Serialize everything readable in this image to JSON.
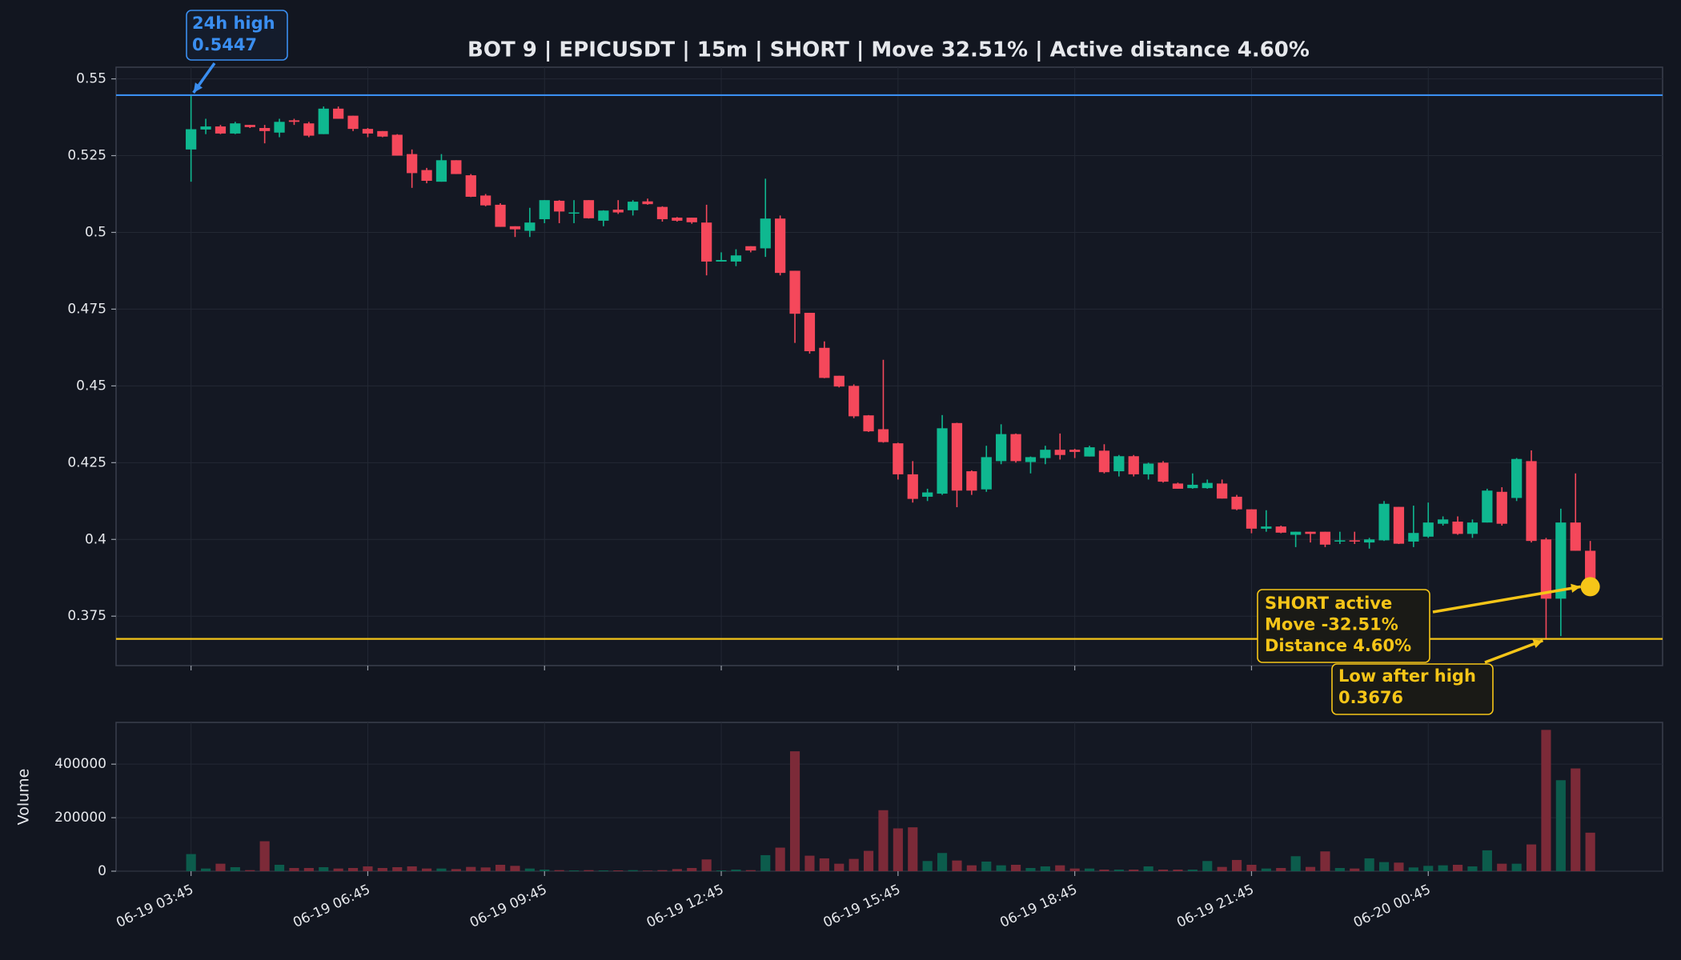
{
  "chart_data": [
    {
      "type": "candlestick",
      "title": "BOT 9 | EPICUSDT | 15m | SHORT | Move 32.51% | Active distance 4.60%",
      "categories": [
        "06-19 03:45",
        "06-19 04:00",
        "06-19 04:15",
        "06-19 04:30",
        "06-19 04:45",
        "06-19 05:00",
        "06-19 05:15",
        "06-19 05:30",
        "06-19 05:45",
        "06-19 06:00",
        "06-19 06:15",
        "06-19 06:30",
        "06-19 06:45",
        "06-19 07:00",
        "06-19 07:15",
        "06-19 07:30",
        "06-19 07:45",
        "06-19 08:00",
        "06-19 08:15",
        "06-19 08:30",
        "06-19 08:45",
        "06-19 09:00",
        "06-19 09:15",
        "06-19 09:30",
        "06-19 09:45",
        "06-19 10:00",
        "06-19 10:15",
        "06-19 10:30",
        "06-19 10:45",
        "06-19 11:00",
        "06-19 11:15",
        "06-19 11:30",
        "06-19 11:45",
        "06-19 12:00",
        "06-19 12:15",
        "06-19 12:30",
        "06-19 12:45",
        "06-19 13:00",
        "06-19 13:15",
        "06-19 13:30",
        "06-19 13:45",
        "06-19 14:00",
        "06-19 14:15",
        "06-19 14:30",
        "06-19 14:45",
        "06-19 15:00",
        "06-19 15:15",
        "06-19 15:30",
        "06-19 15:45",
        "06-19 16:00",
        "06-19 16:15",
        "06-19 16:30",
        "06-19 16:45",
        "06-19 17:00",
        "06-19 17:15",
        "06-19 17:30",
        "06-19 17:45",
        "06-19 18:00",
        "06-19 18:15",
        "06-19 18:30",
        "06-19 18:45",
        "06-19 19:00",
        "06-19 19:15",
        "06-19 19:30",
        "06-19 19:45",
        "06-19 20:00",
        "06-19 20:15",
        "06-19 20:30",
        "06-19 20:45",
        "06-19 21:00",
        "06-19 21:15",
        "06-19 21:30",
        "06-19 21:45",
        "06-19 22:00",
        "06-19 22:15",
        "06-19 22:30",
        "06-19 22:45",
        "06-19 23:00",
        "06-19 23:15",
        "06-19 23:30",
        "06-19 23:45",
        "06-20 00:00",
        "06-20 00:15",
        "06-20 00:30",
        "06-20 00:45",
        "06-20 01:00",
        "06-20 01:15",
        "06-20 01:30",
        "06-20 01:45",
        "06-20 02:00",
        "06-20 02:15",
        "06-20 02:30",
        "06-20 02:45",
        "06-20 03:00",
        "06-20 03:15",
        "06-20 03:30"
      ],
      "open": [
        0.527,
        0.5335,
        0.5345,
        0.5322,
        0.535,
        0.534,
        0.5325,
        0.5365,
        0.5355,
        0.532,
        0.5403,
        0.538,
        0.5337,
        0.533,
        0.5318,
        0.5255,
        0.5203,
        0.5165,
        0.5235,
        0.5186,
        0.512,
        0.509,
        0.502,
        0.5005,
        0.5043,
        0.5103,
        0.5063,
        0.5105,
        0.5038,
        0.5074,
        0.5072,
        0.5101,
        0.5083,
        0.5048,
        0.5048,
        0.5032,
        0.4905,
        0.4905,
        0.4955,
        0.4948,
        0.5045,
        0.4875,
        0.4738,
        0.4624,
        0.4533,
        0.45,
        0.4404,
        0.4359,
        0.4313,
        0.4212,
        0.4139,
        0.4149,
        0.4379,
        0.4222,
        0.4163,
        0.4255,
        0.4343,
        0.4252,
        0.4265,
        0.4292,
        0.4292,
        0.427,
        0.4289,
        0.4222,
        0.4271,
        0.4212,
        0.425,
        0.4182,
        0.4167,
        0.4167,
        0.4182,
        0.4139,
        0.4098,
        0.4035,
        0.4042,
        0.4015,
        0.4025,
        0.4025,
        0.3993,
        0.3997,
        0.399,
        0.3997,
        0.4106,
        0.3993,
        0.4009,
        0.4051,
        0.4058,
        0.4018,
        0.4055,
        0.4155,
        0.4135,
        0.4255,
        0.4,
        0.3807,
        0.4055,
        0.3963
      ],
      "high": [
        0.5447,
        0.537,
        0.535,
        0.536,
        0.535,
        0.535,
        0.537,
        0.537,
        0.536,
        0.541,
        0.541,
        0.538,
        0.534,
        0.533,
        0.532,
        0.527,
        0.521,
        0.5255,
        0.5235,
        0.519,
        0.5125,
        0.5095,
        0.502,
        0.508,
        0.5105,
        0.5105,
        0.5105,
        0.5105,
        0.5072,
        0.5105,
        0.5105,
        0.511,
        0.5085,
        0.505,
        0.5048,
        0.509,
        0.4935,
        0.4945,
        0.4955,
        0.5175,
        0.5055,
        0.4875,
        0.4738,
        0.4645,
        0.4533,
        0.4505,
        0.4405,
        0.4585,
        0.4315,
        0.4255,
        0.4165,
        0.4405,
        0.438,
        0.4225,
        0.4305,
        0.4375,
        0.4345,
        0.427,
        0.4305,
        0.4345,
        0.4295,
        0.4305,
        0.431,
        0.4275,
        0.4275,
        0.425,
        0.4255,
        0.4185,
        0.4215,
        0.4195,
        0.4195,
        0.4145,
        0.4098,
        0.4095,
        0.4045,
        0.4025,
        0.4025,
        0.4025,
        0.4025,
        0.4025,
        0.4005,
        0.4125,
        0.4106,
        0.411,
        0.412,
        0.4075,
        0.4075,
        0.4065,
        0.4165,
        0.417,
        0.4265,
        0.429,
        0.4005,
        0.41,
        0.4215,
        0.3995
      ],
      "low": [
        0.5165,
        0.532,
        0.532,
        0.532,
        0.534,
        0.529,
        0.531,
        0.535,
        0.531,
        0.532,
        0.537,
        0.533,
        0.531,
        0.531,
        0.525,
        0.5145,
        0.516,
        0.5165,
        0.519,
        0.5115,
        0.5085,
        0.5018,
        0.4985,
        0.4985,
        0.503,
        0.503,
        0.503,
        0.5045,
        0.502,
        0.506,
        0.5055,
        0.509,
        0.5035,
        0.5035,
        0.5028,
        0.486,
        0.4905,
        0.489,
        0.4935,
        0.492,
        0.486,
        0.464,
        0.4605,
        0.4525,
        0.4495,
        0.4395,
        0.435,
        0.4315,
        0.4195,
        0.412,
        0.4125,
        0.4145,
        0.4105,
        0.4145,
        0.4155,
        0.4245,
        0.425,
        0.4215,
        0.4245,
        0.426,
        0.4265,
        0.427,
        0.4215,
        0.4205,
        0.4205,
        0.4195,
        0.4185,
        0.4165,
        0.4165,
        0.4165,
        0.4133,
        0.4095,
        0.402,
        0.4025,
        0.402,
        0.3975,
        0.399,
        0.3975,
        0.3985,
        0.3985,
        0.397,
        0.3995,
        0.3985,
        0.3975,
        0.4005,
        0.4045,
        0.4015,
        0.4005,
        0.4055,
        0.4045,
        0.4125,
        0.399,
        0.3676,
        0.3685,
        0.3963,
        0.3846
      ],
      "close": [
        0.5336,
        0.5345,
        0.5322,
        0.5355,
        0.5343,
        0.533,
        0.536,
        0.536,
        0.5315,
        0.5403,
        0.537,
        0.5337,
        0.5322,
        0.5312,
        0.525,
        0.5193,
        0.5168,
        0.5235,
        0.519,
        0.5116,
        0.5088,
        0.5018,
        0.501,
        0.5032,
        0.5105,
        0.5068,
        0.5065,
        0.5046,
        0.5071,
        0.5065,
        0.51,
        0.5092,
        0.5043,
        0.5038,
        0.5033,
        0.4905,
        0.491,
        0.4925,
        0.4941,
        0.5045,
        0.4868,
        0.4735,
        0.4613,
        0.4526,
        0.4498,
        0.4401,
        0.4352,
        0.4317,
        0.4212,
        0.4132,
        0.4153,
        0.4362,
        0.4159,
        0.4159,
        0.4268,
        0.4343,
        0.4255,
        0.4268,
        0.4292,
        0.4275,
        0.4285,
        0.43,
        0.4219,
        0.4271,
        0.4212,
        0.4247,
        0.4188,
        0.4165,
        0.4178,
        0.4184,
        0.4133,
        0.4098,
        0.4035,
        0.4042,
        0.4022,
        0.4025,
        0.4018,
        0.3983,
        0.3997,
        0.3993,
        0.4,
        0.4116,
        0.3986,
        0.4021,
        0.4055,
        0.4065,
        0.4018,
        0.4055,
        0.4159,
        0.4051,
        0.4262,
        0.3995,
        0.3807,
        0.4055,
        0.3963,
        0.3846
      ],
      "up_color": "#0fb890",
      "down_color": "#f5485b",
      "ylim": [
        0.3589,
        0.5538
      ],
      "yticks": [
        0.375,
        0.4,
        0.425,
        0.45,
        0.475,
        0.5,
        0.525,
        0.55
      ],
      "xticks": [
        "06-19 03:45",
        "06-19 06:45",
        "06-19 09:45",
        "06-19 12:45",
        "06-19 15:45",
        "06-19 18:45",
        "06-19 21:45",
        "06-20 00:45"
      ],
      "grid": true,
      "annotations": [
        {
          "label": "24h high",
          "value": 0.5447,
          "color": "#3a8ef0"
        },
        {
          "lines": [
            "SHORT active",
            "Move -32.51%",
            "Distance 4.60%"
          ],
          "color": "#f5c518"
        },
        {
          "label": "Low after high",
          "value": 0.3676,
          "color": "#f5c518"
        }
      ]
    },
    {
      "type": "bar",
      "ylabel": "Volume",
      "values": [
        64000,
        10000,
        28000,
        15000,
        4000,
        112000,
        24000,
        12000,
        12000,
        15000,
        10000,
        12000,
        18000,
        12000,
        15000,
        18000,
        10000,
        10000,
        8000,
        16000,
        14000,
        24000,
        20000,
        10000,
        6000,
        4000,
        3000,
        4000,
        3000,
        3000,
        4000,
        2000,
        4000,
        8000,
        12000,
        44000,
        3000,
        6000,
        4000,
        60000,
        88000,
        448000,
        58000,
        48000,
        28000,
        46000,
        76000,
        228000,
        160000,
        164000,
        38000,
        68000,
        40000,
        22000,
        36000,
        22000,
        24000,
        12000,
        18000,
        22000,
        10000,
        10000,
        6000,
        6000,
        6000,
        18000,
        6000,
        6000,
        6000,
        38000,
        16000,
        42000,
        24000,
        10000,
        12000,
        56000,
        16000,
        74000,
        12000,
        10000,
        48000,
        34000,
        32000,
        14000,
        20000,
        22000,
        24000,
        18000,
        78000,
        28000,
        28000,
        100000,
        528000,
        340000,
        384000,
        144000
      ],
      "up_color": "#0c5c4c",
      "down_color": "#7c2a38",
      "ylim": [
        0,
        556000
      ],
      "yticks": [
        0,
        200000,
        400000
      ],
      "grid": true
    }
  ]
}
